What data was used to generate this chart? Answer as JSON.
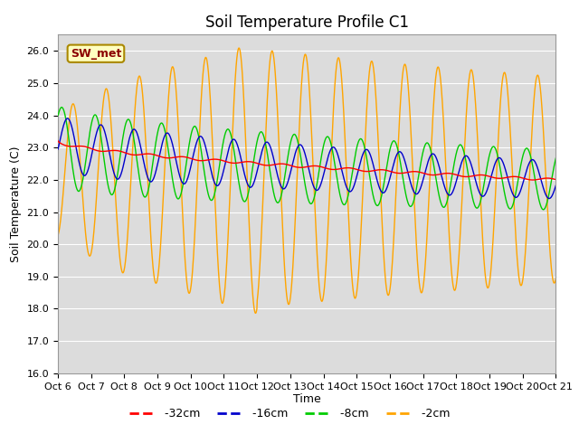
{
  "title": "Soil Temperature Profile C1",
  "xlabel": "Time",
  "ylabel": "Soil Temperature (C)",
  "ylim": [
    16.0,
    26.5
  ],
  "yticks": [
    16.0,
    17.0,
    18.0,
    19.0,
    20.0,
    21.0,
    22.0,
    23.0,
    24.0,
    25.0,
    26.0
  ],
  "x_labels": [
    "Oct 6",
    "Oct 7",
    "Oct 8",
    "Oct 9",
    "Oct 10",
    "Oct 11",
    "Oct 12",
    "Oct 13",
    "Oct 14",
    "Oct 15",
    "Oct 16",
    "Oct 17",
    "Oct 18",
    "Oct 19",
    "Oct 20",
    "Oct 21"
  ],
  "annotation_text": "SW_met",
  "annotation_color": "#8B0000",
  "annotation_bg": "#FFFFC0",
  "line_colors": {
    "-32cm": "#FF0000",
    "-16cm": "#0000CC",
    "-8cm": "#00CC00",
    "-2cm": "#FFA500"
  },
  "background_color": "#DCDCDC",
  "grid_color": "#FFFFFF",
  "title_fontsize": 12,
  "axis_fontsize": 9,
  "tick_fontsize": 8
}
